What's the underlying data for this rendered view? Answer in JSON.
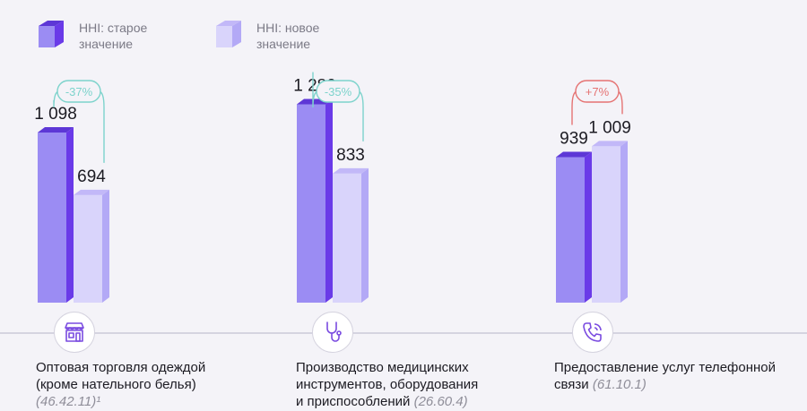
{
  "legend": {
    "old_label_line1": "HHI: старое",
    "old_label_line2": "значение",
    "new_label_line1": "HHI: новое",
    "new_label_line2": "значение"
  },
  "colors": {
    "old_front": "#9b8cf3",
    "old_side": "#6a3ae8",
    "old_top": "#5d37d6",
    "new_front": "#d9d4fb",
    "new_side": "#b3a9f6",
    "new_top": "#c2b8f8",
    "decrease": "#7dd3cc",
    "increase": "#e57373",
    "axis": "#b6b4c8",
    "icon": "#7a4be0"
  },
  "chart_data": {
    "type": "bar",
    "series": [
      {
        "name": "HHI: старое значение",
        "values": [
          1098,
          1280,
          939
        ]
      },
      {
        "name": "HHI: новое значение",
        "values": [
          694,
          833,
          1009
        ]
      }
    ],
    "value_labels": {
      "old": [
        "1 098",
        "1 280",
        "939"
      ],
      "new": [
        "694",
        "833",
        "1 009"
      ]
    },
    "changes": [
      "-37%",
      "-35%",
      "+7%"
    ],
    "change_direction": [
      "down",
      "down",
      "up"
    ],
    "ylim": [
      0,
      1400
    ],
    "categories": [
      {
        "line1": "Оптовая торговля одеждой",
        "line2": "(кроме нательного белья)",
        "line3": "",
        "code": "(46.42.11)¹",
        "icon": "storefront-icon"
      },
      {
        "line1": "Производство медицинских",
        "line2": "инструментов, оборудования",
        "line3": "и приспособлений",
        "code": "(26.60.4)",
        "icon": "stethoscope-icon"
      },
      {
        "line1": "Предоставление услуг телефонной",
        "line2": "связи",
        "line3": "",
        "code": "(61.10.1)",
        "icon": "phone-icon"
      }
    ]
  }
}
